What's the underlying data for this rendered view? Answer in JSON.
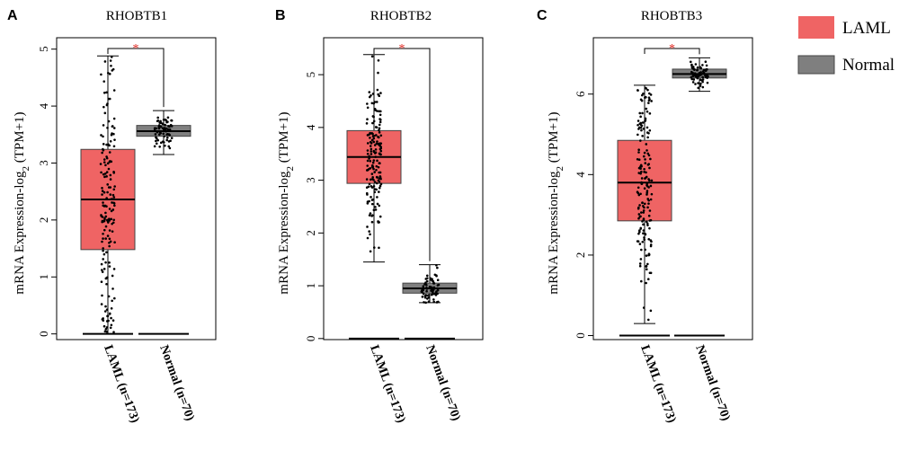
{
  "legend": {
    "items": [
      {
        "label": "LAML",
        "color": "#ef6464"
      },
      {
        "label": "Normal",
        "color": "#7f7f7f"
      }
    ]
  },
  "chart_data": [
    {
      "letter": "A",
      "type": "box",
      "title": "RHOBTB1",
      "ylabel": "mRNA Expression-log2 (TPM+1)",
      "ylabel_main": "mRNA Expression-log",
      "ylabel_sub": "2",
      "ylabel_tail": " (TPM+1)",
      "ylim": [
        -0.1,
        5.2
      ],
      "yticks": [
        "0",
        "1",
        "2",
        "3",
        "4",
        "5"
      ],
      "significance": "*",
      "groups": [
        {
          "name": "LAML",
          "label": "LAML (n=173)",
          "n": 173,
          "color": "#ef6464",
          "q1": 1.48,
          "median": 2.36,
          "q3": 3.24,
          "whisker_low": 0.0,
          "whisker_high": 4.88
        },
        {
          "name": "Normal",
          "label": "Normal (n=70)",
          "n": 70,
          "color": "#7f7f7f",
          "q1": 3.47,
          "median": 3.56,
          "q3": 3.66,
          "whisker_low": 3.15,
          "whisker_high": 3.92
        }
      ]
    },
    {
      "letter": "B",
      "type": "box",
      "title": "RHOBTB2",
      "ylabel": "mRNA Expression-log2 (TPM+1)",
      "ylabel_main": "mRNA Expression-log",
      "ylabel_sub": "2",
      "ylabel_tail": " (TPM+1)",
      "ylim": [
        -0.02,
        5.7
      ],
      "yticks": [
        "0",
        "1",
        "2",
        "3",
        "4",
        "5"
      ],
      "significance": "*",
      "groups": [
        {
          "name": "LAML",
          "label": "LAML (n=173)",
          "n": 173,
          "color": "#ef6464",
          "q1": 2.94,
          "median": 3.44,
          "q3": 3.94,
          "whisker_low": 1.45,
          "whisker_high": 5.38
        },
        {
          "name": "Normal",
          "label": "Normal (n=70)",
          "n": 70,
          "color": "#7f7f7f",
          "q1": 0.86,
          "median": 0.95,
          "q3": 1.05,
          "whisker_low": 0.68,
          "whisker_high": 1.4
        }
      ]
    },
    {
      "letter": "C",
      "type": "box",
      "title": "RHOBTB3",
      "ylabel": "mRNA Expression-log2 (TPM+1)",
      "ylabel_main": "mRNA Expression-log",
      "ylabel_sub": "2",
      "ylabel_tail": " (TPM+1)",
      "ylim": [
        -0.1,
        7.4
      ],
      "yticks": [
        "0",
        "2",
        "4",
        "6"
      ],
      "significance": "*",
      "groups": [
        {
          "name": "LAML",
          "label": "LAML (n=173)",
          "n": 173,
          "color": "#ef6464",
          "q1": 2.85,
          "median": 3.8,
          "q3": 4.85,
          "whisker_low": 0.3,
          "whisker_high": 6.22
        },
        {
          "name": "Normal",
          "label": "Normal (n=70)",
          "n": 70,
          "color": "#7f7f7f",
          "q1": 6.4,
          "median": 6.5,
          "q3": 6.62,
          "whisker_low": 6.07,
          "whisker_high": 6.9
        }
      ]
    }
  ]
}
